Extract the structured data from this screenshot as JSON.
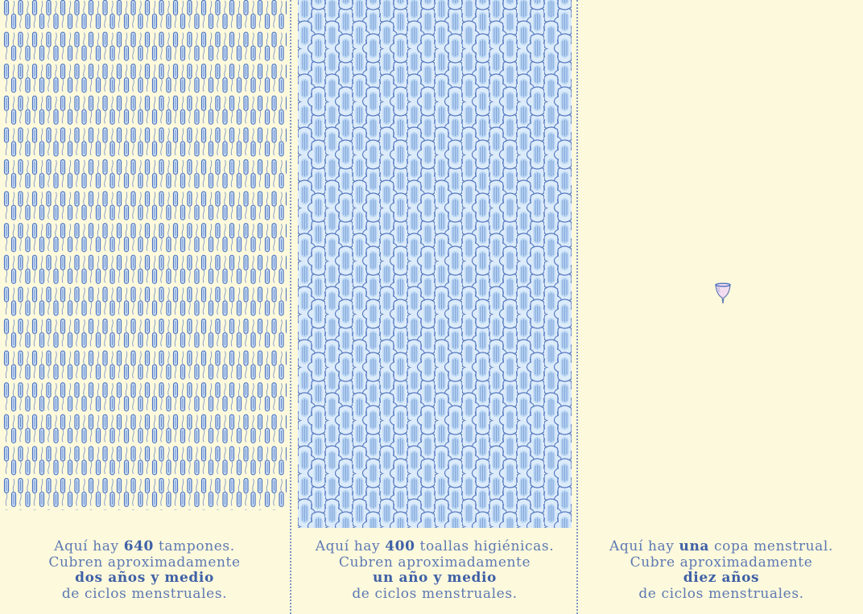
{
  "colors": {
    "background": "#fdf9dc",
    "text": "#5d79b3",
    "accent": "#3f61a6",
    "product_fill": "#cfe3f7",
    "product_stroke": "#4f74c0",
    "cup_fill": "#f3dcf0"
  },
  "panels": [
    {
      "icon": "tampon-icon",
      "count_value": 640,
      "line1_pre": "Aquí hay ",
      "line1_bold": "640",
      "line1_post": " tampones.",
      "line2": "Cubren aproximadamente",
      "line3": "dos años y medio",
      "line4": "de ciclos menstruales."
    },
    {
      "icon": "sanitary-pad-icon",
      "count_value": 400,
      "line1_pre": "Aquí hay ",
      "line1_bold": "400",
      "line1_post": " toallas higiénicas.",
      "line2": "Cubren aproximadamente",
      "line3": "un año y medio",
      "line4": "de ciclos menstruales."
    },
    {
      "icon": "menstrual-cup-icon",
      "count_value": 1,
      "line1_pre": "Aquí hay ",
      "line1_bold": "una",
      "line1_post": " copa menstrual.",
      "line2": "Cubre aproximadamente",
      "line3": "diez años",
      "line4": "de ciclos menstruales."
    }
  ]
}
